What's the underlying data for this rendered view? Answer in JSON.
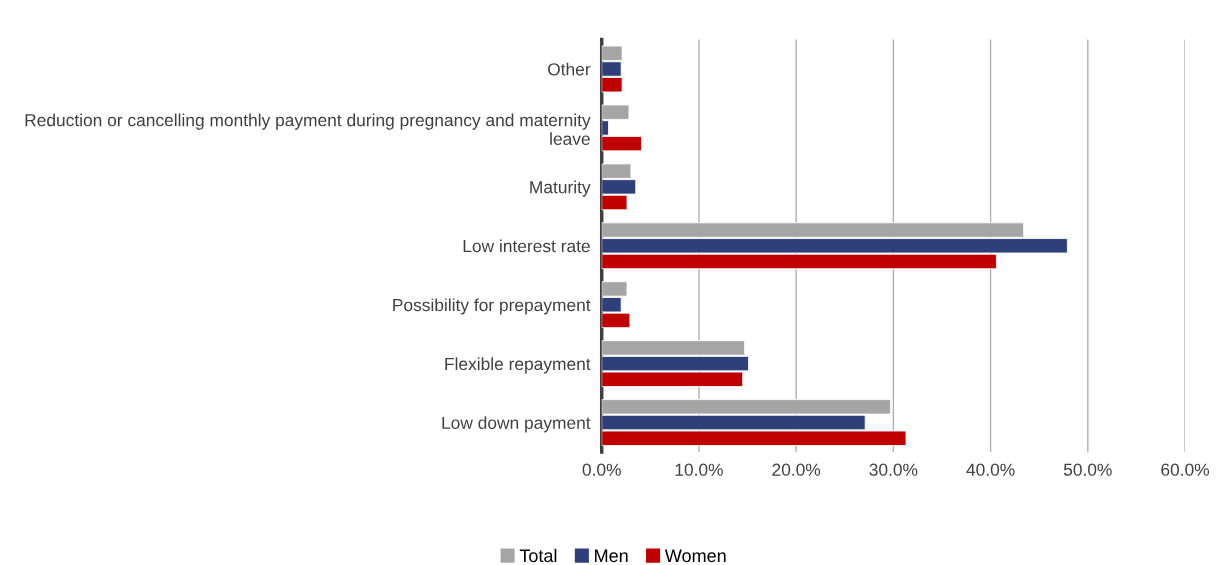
{
  "chart_data": {
    "type": "bar",
    "orientation": "horizontal",
    "categories": [
      "Other",
      "Reduction or cancelling monthly payment during pregnancy and maternity leave",
      "Maturity",
      "Low interest rate",
      "Possibility for prepayment",
      "Flexible repayment",
      "Low down payment"
    ],
    "series": [
      {
        "name": "Total",
        "color": "#a5a5a5",
        "values": [
          2.1,
          2.8,
          3.0,
          43.4,
          2.6,
          14.7,
          29.7
        ]
      },
      {
        "name": "Men",
        "color": "#2f3f79",
        "values": [
          2.0,
          0.7,
          3.5,
          47.9,
          2.0,
          15.1,
          27.1
        ]
      },
      {
        "name": "Women",
        "color": "#c00000",
        "values": [
          2.1,
          4.1,
          2.6,
          40.6,
          2.9,
          14.5,
          31.3
        ]
      }
    ],
    "xlim": [
      0,
      60
    ],
    "xticks": [
      {
        "value": 0,
        "label": "0.0%"
      },
      {
        "value": 10,
        "label": "10.0%"
      },
      {
        "value": 20,
        "label": "20.0%"
      },
      {
        "value": 30,
        "label": "30.0%"
      },
      {
        "value": 40,
        "label": "40.0%"
      },
      {
        "value": 50,
        "label": "50.0%"
      },
      {
        "value": 60,
        "label": "60.0%"
      }
    ],
    "grid": "x",
    "legend": "bottom"
  }
}
